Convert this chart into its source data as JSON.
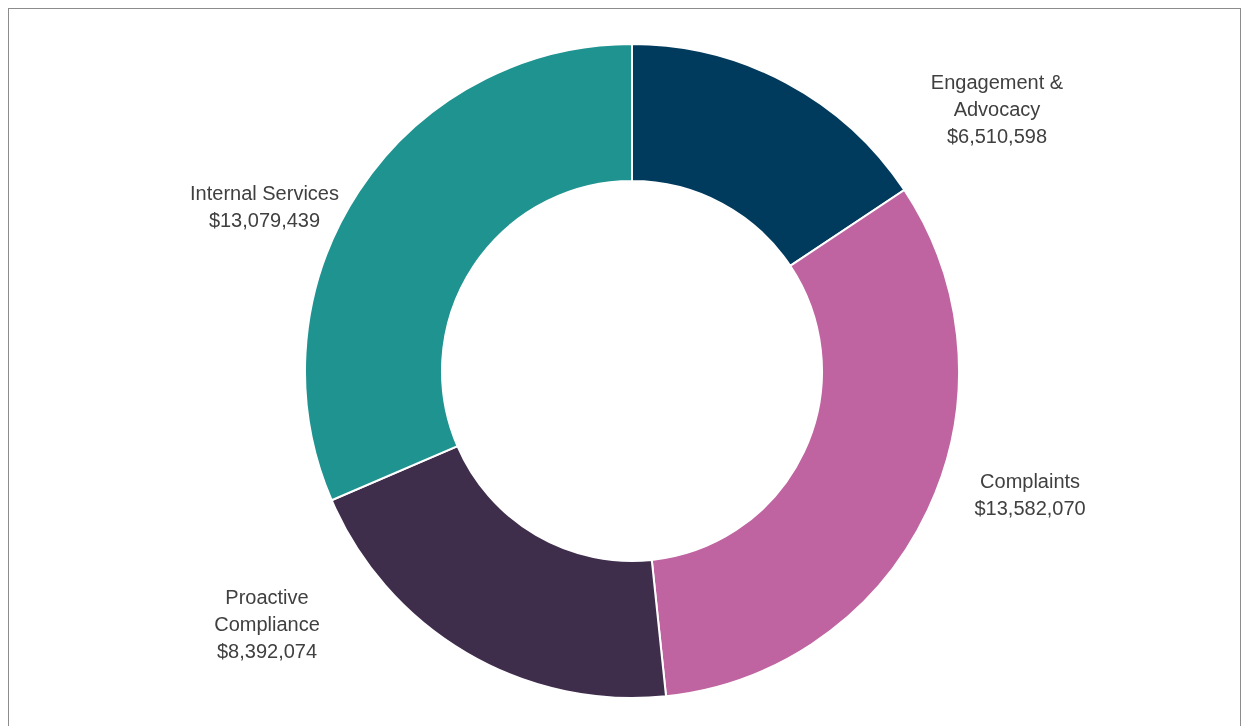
{
  "chart_data": {
    "type": "donut",
    "categories": [
      "Engagement & Advocacy",
      "Complaints",
      "Proactive Compliance",
      "Internal Services"
    ],
    "values": [
      6510598,
      13582070,
      8392074,
      13079439
    ],
    "value_labels": [
      "$6,510,598",
      "$13,582,070",
      "$8,392,074",
      "$13,079,439"
    ],
    "colors": [
      "#003a5d",
      "#bf64a0",
      "#3f2d4c",
      "#1f9390"
    ]
  }
}
